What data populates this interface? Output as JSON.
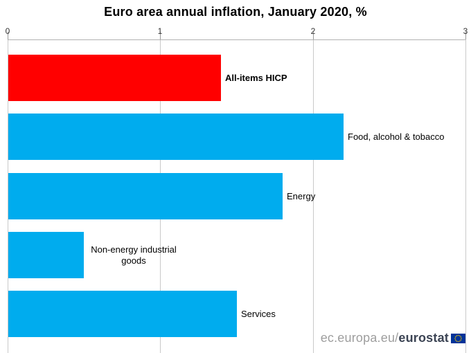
{
  "chart_data": {
    "type": "bar",
    "orientation": "horizontal",
    "title": "Euro area annual inflation, January 2020, %",
    "categories": [
      "All-items HICP",
      "Food, alcohol & tobacco",
      "Energy",
      "Non-energy industrial goods",
      "Services"
    ],
    "values": [
      1.4,
      2.2,
      1.8,
      0.5,
      1.5
    ],
    "xlim": [
      0,
      3
    ],
    "xticks": [
      "0",
      "1",
      "2",
      "3"
    ],
    "grid": true,
    "axis_position": "top",
    "highlight_index": 0,
    "colors": {
      "highlight_bar": "#ff0000",
      "bar": "#00acee",
      "gridline": "#c9c9c9",
      "axis_line": "#b0b0b0"
    }
  },
  "footer": {
    "url_prefix": "ec.europa.eu/",
    "url_brand": "eurostat",
    "flag_icon": "eu-flag-icon",
    "flag_colors": {
      "field": "#003399",
      "stars": "#ffcc00"
    }
  }
}
